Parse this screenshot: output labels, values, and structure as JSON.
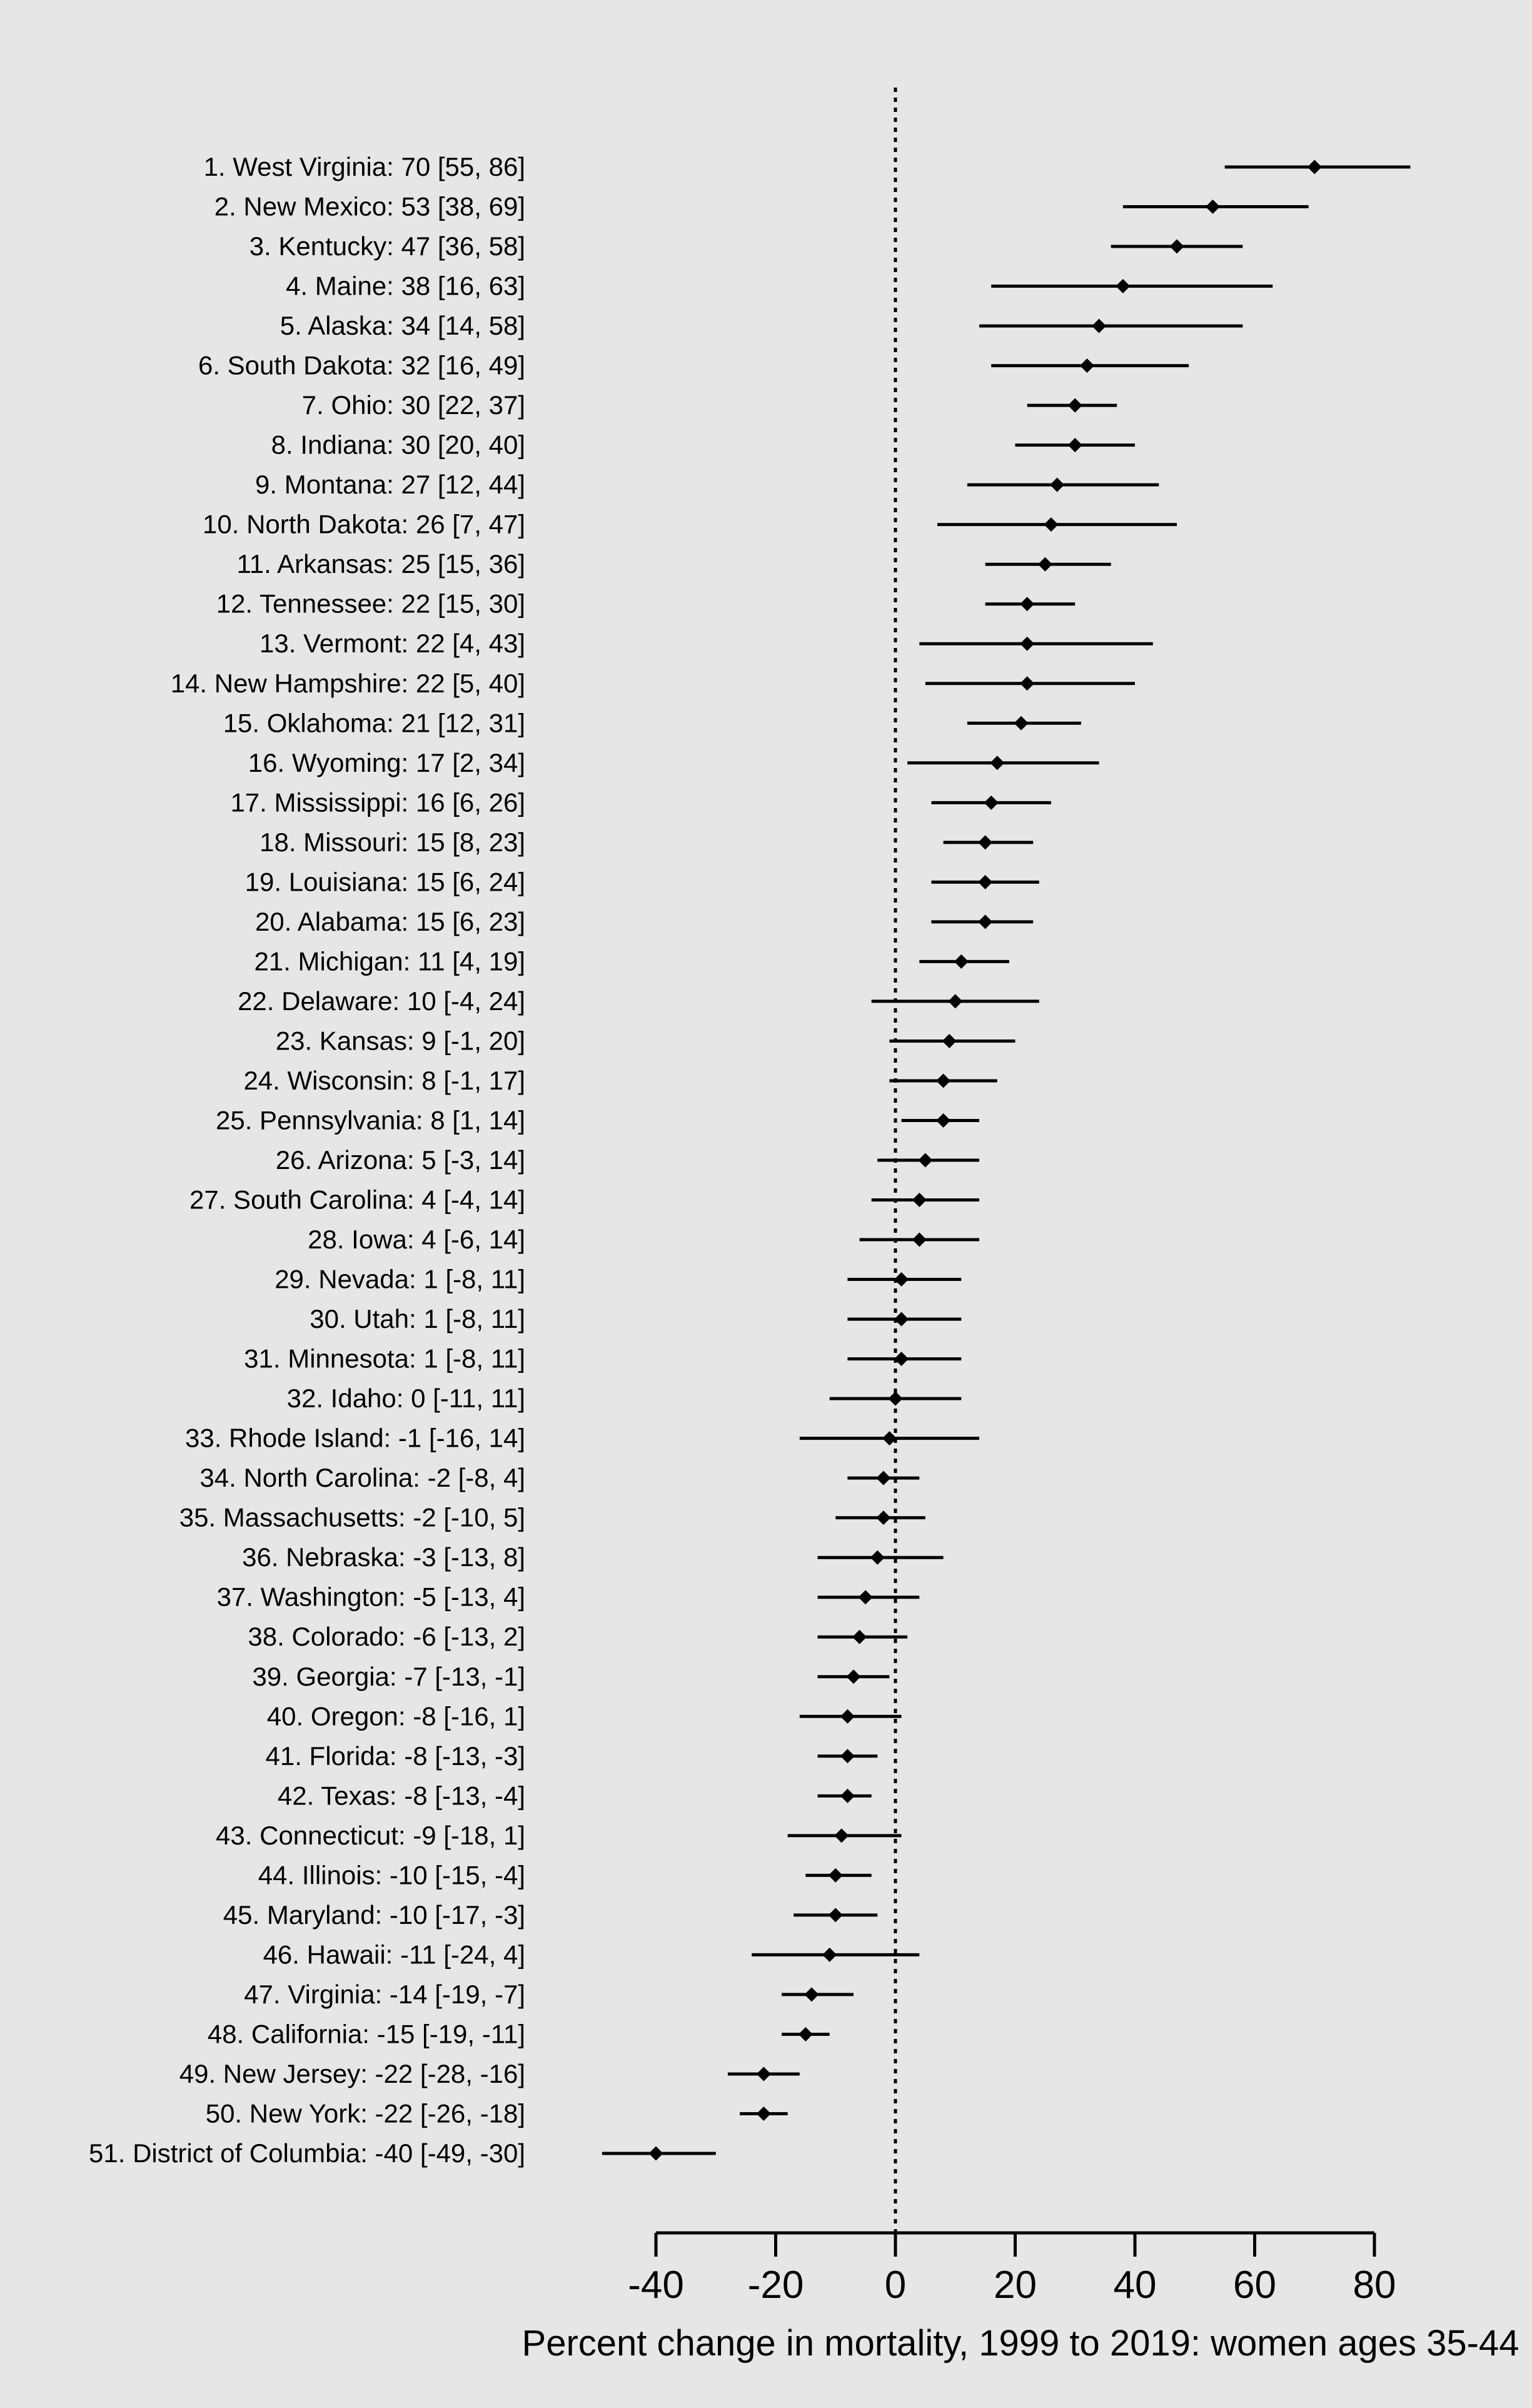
{
  "figure": {
    "background_color": "#e6e6e6",
    "foreground_color": "#000000"
  },
  "chart_data": {
    "type": "scatter",
    "variant": "forest-plot-with-confidence-intervals",
    "title": "",
    "xlabel": "Percent change in mortality, 1999 to 2019: women ages 35-44",
    "ylabel": "",
    "legend": null,
    "grid": false,
    "x_axis": {
      "ticks": [
        -40,
        -20,
        0,
        20,
        40,
        60,
        80
      ],
      "axis_range": [
        -40,
        80
      ],
      "data_range": [
        -49,
        86
      ],
      "reference_line": 0
    },
    "label_format": "{rank}. {state}: {estimate} [{lo}, {hi}]",
    "rows": [
      {
        "rank": 1,
        "state": "West Virginia",
        "estimate": 70,
        "lo": 55,
        "hi": 86
      },
      {
        "rank": 2,
        "state": "New Mexico",
        "estimate": 53,
        "lo": 38,
        "hi": 69
      },
      {
        "rank": 3,
        "state": "Kentucky",
        "estimate": 47,
        "lo": 36,
        "hi": 58
      },
      {
        "rank": 4,
        "state": "Maine",
        "estimate": 38,
        "lo": 16,
        "hi": 63
      },
      {
        "rank": 5,
        "state": "Alaska",
        "estimate": 34,
        "lo": 14,
        "hi": 58
      },
      {
        "rank": 6,
        "state": "South Dakota",
        "estimate": 32,
        "lo": 16,
        "hi": 49
      },
      {
        "rank": 7,
        "state": "Ohio",
        "estimate": 30,
        "lo": 22,
        "hi": 37
      },
      {
        "rank": 8,
        "state": "Indiana",
        "estimate": 30,
        "lo": 20,
        "hi": 40
      },
      {
        "rank": 9,
        "state": "Montana",
        "estimate": 27,
        "lo": 12,
        "hi": 44
      },
      {
        "rank": 10,
        "state": "North Dakota",
        "estimate": 26,
        "lo": 7,
        "hi": 47
      },
      {
        "rank": 11,
        "state": "Arkansas",
        "estimate": 25,
        "lo": 15,
        "hi": 36
      },
      {
        "rank": 12,
        "state": "Tennessee",
        "estimate": 22,
        "lo": 15,
        "hi": 30
      },
      {
        "rank": 13,
        "state": "Vermont",
        "estimate": 22,
        "lo": 4,
        "hi": 43
      },
      {
        "rank": 14,
        "state": "New Hampshire",
        "estimate": 22,
        "lo": 5,
        "hi": 40
      },
      {
        "rank": 15,
        "state": "Oklahoma",
        "estimate": 21,
        "lo": 12,
        "hi": 31
      },
      {
        "rank": 16,
        "state": "Wyoming",
        "estimate": 17,
        "lo": 2,
        "hi": 34
      },
      {
        "rank": 17,
        "state": "Mississippi",
        "estimate": 16,
        "lo": 6,
        "hi": 26
      },
      {
        "rank": 18,
        "state": "Missouri",
        "estimate": 15,
        "lo": 8,
        "hi": 23
      },
      {
        "rank": 19,
        "state": "Louisiana",
        "estimate": 15,
        "lo": 6,
        "hi": 24
      },
      {
        "rank": 20,
        "state": "Alabama",
        "estimate": 15,
        "lo": 6,
        "hi": 23
      },
      {
        "rank": 21,
        "state": "Michigan",
        "estimate": 11,
        "lo": 4,
        "hi": 19
      },
      {
        "rank": 22,
        "state": "Delaware",
        "estimate": 10,
        "lo": -4,
        "hi": 24
      },
      {
        "rank": 23,
        "state": "Kansas",
        "estimate": 9,
        "lo": -1,
        "hi": 20
      },
      {
        "rank": 24,
        "state": "Wisconsin",
        "estimate": 8,
        "lo": -1,
        "hi": 17
      },
      {
        "rank": 25,
        "state": "Pennsylvania",
        "estimate": 8,
        "lo": 1,
        "hi": 14
      },
      {
        "rank": 26,
        "state": "Arizona",
        "estimate": 5,
        "lo": -3,
        "hi": 14
      },
      {
        "rank": 27,
        "state": "South Carolina",
        "estimate": 4,
        "lo": -4,
        "hi": 14
      },
      {
        "rank": 28,
        "state": "Iowa",
        "estimate": 4,
        "lo": -6,
        "hi": 14
      },
      {
        "rank": 29,
        "state": "Nevada",
        "estimate": 1,
        "lo": -8,
        "hi": 11
      },
      {
        "rank": 30,
        "state": "Utah",
        "estimate": 1,
        "lo": -8,
        "hi": 11
      },
      {
        "rank": 31,
        "state": "Minnesota",
        "estimate": 1,
        "lo": -8,
        "hi": 11
      },
      {
        "rank": 32,
        "state": "Idaho",
        "estimate": 0,
        "lo": -11,
        "hi": 11
      },
      {
        "rank": 33,
        "state": "Rhode Island",
        "estimate": -1,
        "lo": -16,
        "hi": 14
      },
      {
        "rank": 34,
        "state": "North Carolina",
        "estimate": -2,
        "lo": -8,
        "hi": 4
      },
      {
        "rank": 35,
        "state": "Massachusetts",
        "estimate": -2,
        "lo": -10,
        "hi": 5
      },
      {
        "rank": 36,
        "state": "Nebraska",
        "estimate": -3,
        "lo": -13,
        "hi": 8
      },
      {
        "rank": 37,
        "state": "Washington",
        "estimate": -5,
        "lo": -13,
        "hi": 4
      },
      {
        "rank": 38,
        "state": "Colorado",
        "estimate": -6,
        "lo": -13,
        "hi": 2
      },
      {
        "rank": 39,
        "state": "Georgia",
        "estimate": -7,
        "lo": -13,
        "hi": -1
      },
      {
        "rank": 40,
        "state": "Oregon",
        "estimate": -8,
        "lo": -16,
        "hi": 1
      },
      {
        "rank": 41,
        "state": "Florida",
        "estimate": -8,
        "lo": -13,
        "hi": -3
      },
      {
        "rank": 42,
        "state": "Texas",
        "estimate": -8,
        "lo": -13,
        "hi": -4
      },
      {
        "rank": 43,
        "state": "Connecticut",
        "estimate": -9,
        "lo": -18,
        "hi": 1
      },
      {
        "rank": 44,
        "state": "Illinois",
        "estimate": -10,
        "lo": -15,
        "hi": -4
      },
      {
        "rank": 45,
        "state": "Maryland",
        "estimate": -10,
        "lo": -17,
        "hi": -3
      },
      {
        "rank": 46,
        "state": "Hawaii",
        "estimate": -11,
        "lo": -24,
        "hi": 4
      },
      {
        "rank": 47,
        "state": "Virginia",
        "estimate": -14,
        "lo": -19,
        "hi": -7
      },
      {
        "rank": 48,
        "state": "California",
        "estimate": -15,
        "lo": -19,
        "hi": -11
      },
      {
        "rank": 49,
        "state": "New Jersey",
        "estimate": -22,
        "lo": -28,
        "hi": -16
      },
      {
        "rank": 50,
        "state": "New York",
        "estimate": -22,
        "lo": -26,
        "hi": -18
      },
      {
        "rank": 51,
        "state": "District of Columbia",
        "estimate": -40,
        "lo": -49,
        "hi": -30
      }
    ]
  }
}
